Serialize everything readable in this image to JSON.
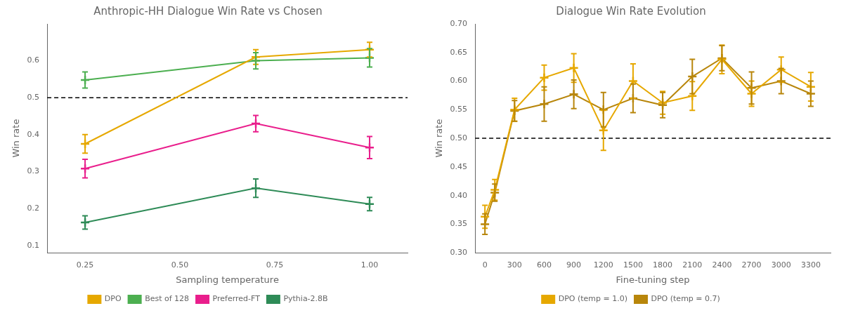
{
  "chart_data": [
    {
      "type": "line",
      "title": "Anthropic-HH Dialogue Win Rate vs Chosen",
      "xlabel": "Sampling temperature",
      "ylabel": "Win rate",
      "x": [
        0.25,
        0.7,
        1.0
      ],
      "series": [
        {
          "name": "DPO",
          "color": "#E6A800",
          "values": [
            0.375,
            0.61,
            0.63
          ],
          "errors": [
            0.025,
            0.02,
            0.02
          ]
        },
        {
          "name": "Best of 128",
          "color": "#4CAF50",
          "values": [
            0.548,
            0.6,
            0.608
          ],
          "errors": [
            0.022,
            0.022,
            0.025
          ]
        },
        {
          "name": "Preferred-FT",
          "color": "#E91E8C",
          "values": [
            0.308,
            0.43,
            0.365
          ],
          "errors": [
            0.025,
            0.022,
            0.03
          ]
        },
        {
          "name": "Pythia-2.8B",
          "color": "#2E8B57",
          "values": [
            0.162,
            0.255,
            0.212
          ],
          "errors": [
            0.018,
            0.025,
            0.018
          ]
        }
      ],
      "reference_line": 0.5,
      "xlim": [
        0.15,
        1.1
      ],
      "xticks": [
        0.25,
        {
          "value": 0.5,
          "label": "0.50"
        },
        0.75,
        {
          "value": 1.0,
          "label": "1.00"
        }
      ],
      "ylim": [
        0.08,
        0.7
      ],
      "yticks": [
        0.1,
        0.2,
        0.3,
        0.4,
        0.5,
        0.6
      ],
      "grid": false,
      "legend": "bottom",
      "marker": "plus",
      "line_style": "solid"
    },
    {
      "type": "line",
      "title": "Dialogue Win Rate Evolution",
      "xlabel": "Fine-tuning step",
      "ylabel": "Win rate",
      "x": [
        0,
        100,
        300,
        600,
        900,
        1200,
        1500,
        1800,
        2100,
        2400,
        2700,
        3000,
        3300
      ],
      "series": [
        {
          "name": "DPO (temp = 1.0)",
          "color": "#E6A800",
          "values": [
            0.363,
            0.41,
            0.55,
            0.606,
            0.623,
            0.514,
            0.6,
            0.562,
            0.574,
            0.638,
            0.578,
            0.62,
            0.59
          ],
          "errors": [
            0.02,
            0.018,
            0.02,
            0.022,
            0.025,
            0.035,
            0.03,
            0.02,
            0.025,
            0.025,
            0.022,
            0.022,
            0.025
          ]
        },
        {
          "name": "DPO (temp = 0.7)",
          "color": "#B8860B",
          "values": [
            0.35,
            0.405,
            0.548,
            0.56,
            0.577,
            0.55,
            0.57,
            0.558,
            0.608,
            0.64,
            0.588,
            0.6,
            0.578
          ],
          "errors": [
            0.018,
            0.015,
            0.018,
            0.03,
            0.025,
            0.03,
            0.025,
            0.022,
            0.03,
            0.022,
            0.028,
            0.022,
            0.022
          ]
        }
      ],
      "reference_line": 0.5,
      "xlim": [
        -100,
        3500
      ],
      "xticks": [
        0,
        300,
        600,
        900,
        1200,
        1500,
        1800,
        2100,
        2400,
        2700,
        3000,
        3300
      ],
      "ylim": [
        0.3,
        0.7
      ],
      "yticks": [
        {
          "value": 0.3,
          "label": "0.30"
        },
        0.35,
        {
          "value": 0.4,
          "label": "0.40"
        },
        0.45,
        {
          "value": 0.5,
          "label": "0.50"
        },
        0.55,
        {
          "value": 0.6,
          "label": "0.60"
        },
        0.65,
        {
          "value": 0.7,
          "label": "0.70"
        }
      ],
      "grid": false,
      "legend": "bottom",
      "marker": "plus",
      "line_style": "solid"
    }
  ]
}
